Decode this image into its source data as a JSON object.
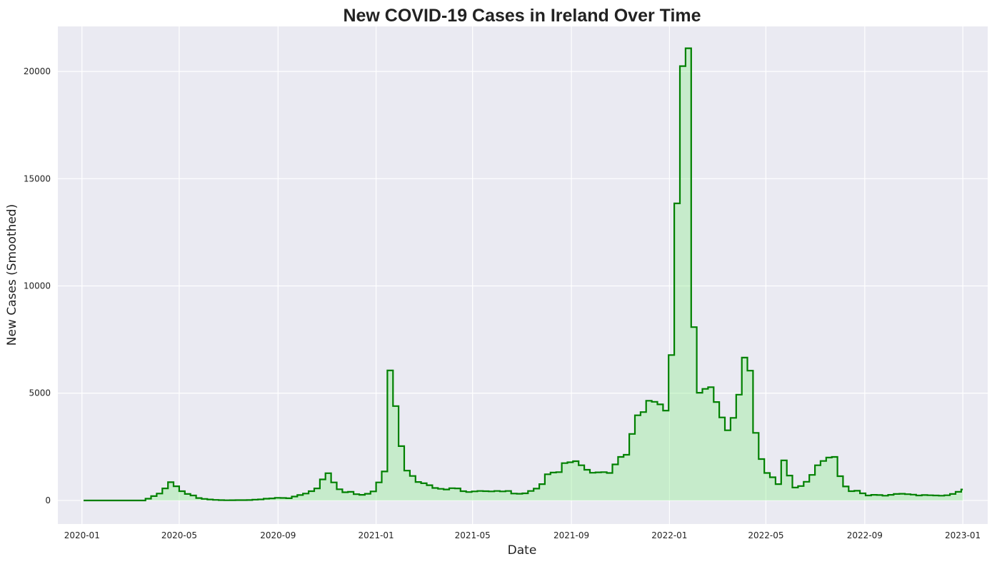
{
  "chart_data": {
    "type": "line",
    "title": "New COVID-19 Cases in Ireland Over Time",
    "xlabel": "Date",
    "ylabel": "New Cases (Smoothed)",
    "xlim": [
      "2019-12-02",
      "2023-02-01"
    ],
    "ylim": [
      -1100,
      22100
    ],
    "grid": true,
    "legend": "none",
    "x_ticks": [
      "2020-01",
      "2020-05",
      "2020-09",
      "2021-01",
      "2021-05",
      "2021-09",
      "2022-01",
      "2022-05",
      "2022-09",
      "2023-01"
    ],
    "y_ticks": [
      0,
      5000,
      10000,
      15000,
      20000
    ],
    "series": [
      {
        "line_color": "#008000",
        "fill_color": "#90ee90",
        "points": [
          [
            "2020-01-03",
            0
          ],
          [
            "2020-03-13",
            0
          ],
          [
            "2020-03-20",
            80
          ],
          [
            "2020-03-27",
            200
          ],
          [
            "2020-04-03",
            320
          ],
          [
            "2020-04-10",
            560
          ],
          [
            "2020-04-17",
            850
          ],
          [
            "2020-04-24",
            660
          ],
          [
            "2020-05-01",
            430
          ],
          [
            "2020-05-08",
            300
          ],
          [
            "2020-05-15",
            230
          ],
          [
            "2020-05-22",
            110
          ],
          [
            "2020-05-29",
            70
          ],
          [
            "2020-06-05",
            45
          ],
          [
            "2020-06-12",
            25
          ],
          [
            "2020-06-19",
            15
          ],
          [
            "2020-06-26",
            10
          ],
          [
            "2020-07-03",
            12
          ],
          [
            "2020-07-10",
            14
          ],
          [
            "2020-07-17",
            16
          ],
          [
            "2020-07-24",
            20
          ],
          [
            "2020-07-31",
            35
          ],
          [
            "2020-08-07",
            50
          ],
          [
            "2020-08-14",
            80
          ],
          [
            "2020-08-21",
            95
          ],
          [
            "2020-08-28",
            120
          ],
          [
            "2020-09-04",
            115
          ],
          [
            "2020-09-11",
            100
          ],
          [
            "2020-09-18",
            180
          ],
          [
            "2020-09-25",
            250
          ],
          [
            "2020-10-02",
            320
          ],
          [
            "2020-10-09",
            430
          ],
          [
            "2020-10-16",
            560
          ],
          [
            "2020-10-23",
            980
          ],
          [
            "2020-10-30",
            1270
          ],
          [
            "2020-11-06",
            840
          ],
          [
            "2020-11-13",
            520
          ],
          [
            "2020-11-20",
            380
          ],
          [
            "2020-11-27",
            400
          ],
          [
            "2020-12-04",
            290
          ],
          [
            "2020-12-11",
            260
          ],
          [
            "2020-12-18",
            310
          ],
          [
            "2020-12-25",
            420
          ],
          [
            "2021-01-01",
            840
          ],
          [
            "2021-01-08",
            1350
          ],
          [
            "2021-01-15",
            6060
          ],
          [
            "2021-01-22",
            4400
          ],
          [
            "2021-01-29",
            2530
          ],
          [
            "2021-02-05",
            1390
          ],
          [
            "2021-02-12",
            1140
          ],
          [
            "2021-02-19",
            860
          ],
          [
            "2021-02-26",
            800
          ],
          [
            "2021-03-05",
            710
          ],
          [
            "2021-03-12",
            580
          ],
          [
            "2021-03-19",
            540
          ],
          [
            "2021-03-26",
            510
          ],
          [
            "2021-04-02",
            570
          ],
          [
            "2021-04-09",
            560
          ],
          [
            "2021-04-16",
            430
          ],
          [
            "2021-04-23",
            390
          ],
          [
            "2021-04-30",
            420
          ],
          [
            "2021-05-07",
            440
          ],
          [
            "2021-05-14",
            430
          ],
          [
            "2021-05-21",
            420
          ],
          [
            "2021-05-28",
            440
          ],
          [
            "2021-06-04",
            420
          ],
          [
            "2021-06-11",
            440
          ],
          [
            "2021-06-18",
            320
          ],
          [
            "2021-06-25",
            310
          ],
          [
            "2021-07-02",
            330
          ],
          [
            "2021-07-09",
            440
          ],
          [
            "2021-07-16",
            550
          ],
          [
            "2021-07-23",
            760
          ],
          [
            "2021-07-30",
            1220
          ],
          [
            "2021-08-06",
            1300
          ],
          [
            "2021-08-13",
            1320
          ],
          [
            "2021-08-20",
            1740
          ],
          [
            "2021-08-27",
            1780
          ],
          [
            "2021-09-03",
            1830
          ],
          [
            "2021-09-10",
            1640
          ],
          [
            "2021-09-17",
            1430
          ],
          [
            "2021-09-24",
            1290
          ],
          [
            "2021-10-01",
            1310
          ],
          [
            "2021-10-08",
            1320
          ],
          [
            "2021-10-15",
            1280
          ],
          [
            "2021-10-22",
            1680
          ],
          [
            "2021-10-29",
            2030
          ],
          [
            "2021-11-05",
            2130
          ],
          [
            "2021-11-12",
            3100
          ],
          [
            "2021-11-19",
            3970
          ],
          [
            "2021-11-26",
            4120
          ],
          [
            "2021-12-03",
            4650
          ],
          [
            "2021-12-10",
            4600
          ],
          [
            "2021-12-17",
            4480
          ],
          [
            "2021-12-24",
            4190
          ],
          [
            "2021-12-31",
            6780
          ],
          [
            "2022-01-07",
            13850
          ],
          [
            "2022-01-14",
            20250
          ],
          [
            "2022-01-21",
            21080
          ],
          [
            "2022-01-28",
            8080
          ],
          [
            "2022-02-04",
            5020
          ],
          [
            "2022-02-11",
            5200
          ],
          [
            "2022-02-18",
            5280
          ],
          [
            "2022-02-25",
            4590
          ],
          [
            "2022-03-04",
            3870
          ],
          [
            "2022-03-11",
            3270
          ],
          [
            "2022-03-18",
            3850
          ],
          [
            "2022-03-25",
            4930
          ],
          [
            "2022-04-01",
            6660
          ],
          [
            "2022-04-08",
            6050
          ],
          [
            "2022-04-15",
            3150
          ],
          [
            "2022-04-22",
            1930
          ],
          [
            "2022-04-29",
            1280
          ],
          [
            "2022-05-06",
            1080
          ],
          [
            "2022-05-13",
            760
          ],
          [
            "2022-05-20",
            1870
          ],
          [
            "2022-05-27",
            1160
          ],
          [
            "2022-06-03",
            600
          ],
          [
            "2022-06-10",
            670
          ],
          [
            "2022-06-17",
            870
          ],
          [
            "2022-06-24",
            1190
          ],
          [
            "2022-07-01",
            1640
          ],
          [
            "2022-07-08",
            1840
          ],
          [
            "2022-07-15",
            2000
          ],
          [
            "2022-07-22",
            2030
          ],
          [
            "2022-07-29",
            1130
          ],
          [
            "2022-08-05",
            650
          ],
          [
            "2022-08-12",
            430
          ],
          [
            "2022-08-19",
            450
          ],
          [
            "2022-08-26",
            330
          ],
          [
            "2022-09-02",
            230
          ],
          [
            "2022-09-09",
            260
          ],
          [
            "2022-09-16",
            250
          ],
          [
            "2022-09-23",
            220
          ],
          [
            "2022-09-30",
            260
          ],
          [
            "2022-10-07",
            300
          ],
          [
            "2022-10-14",
            310
          ],
          [
            "2022-10-21",
            290
          ],
          [
            "2022-10-28",
            270
          ],
          [
            "2022-11-04",
            230
          ],
          [
            "2022-11-11",
            250
          ],
          [
            "2022-11-18",
            240
          ],
          [
            "2022-11-25",
            230
          ],
          [
            "2022-12-02",
            220
          ],
          [
            "2022-12-09",
            240
          ],
          [
            "2022-12-16",
            300
          ],
          [
            "2022-12-23",
            400
          ],
          [
            "2022-12-30",
            510
          ],
          [
            "2023-01-01",
            510
          ]
        ]
      }
    ]
  }
}
